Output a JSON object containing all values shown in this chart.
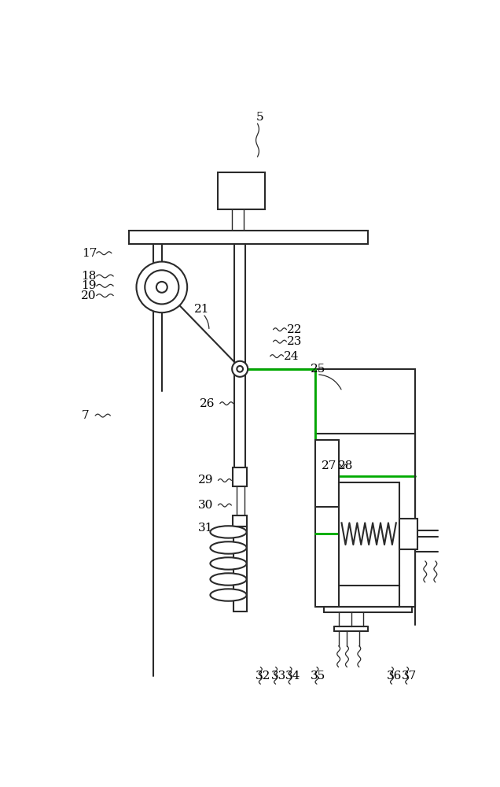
{
  "bg_color": "#ffffff",
  "line_color": "#2a2a2a",
  "line_width": 1.5,
  "thin_lw": 1.0,
  "green_color": "#00aa00"
}
